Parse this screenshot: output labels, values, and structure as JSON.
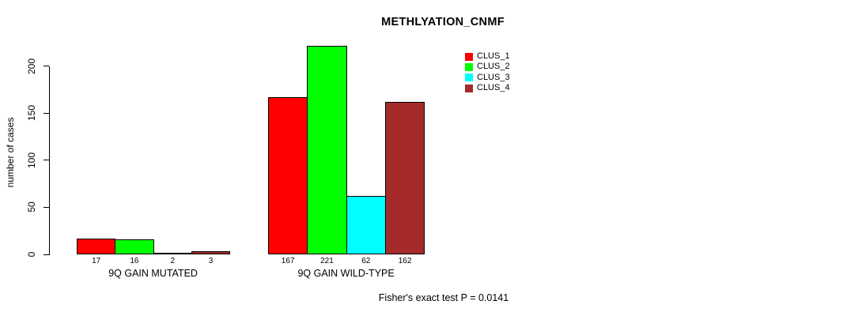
{
  "chart_data": {
    "type": "bar",
    "title": "METHLYATION_CNMF",
    "ylabel": "number of cases",
    "xlabel": "",
    "categories": [
      "9Q GAIN MUTATED",
      "9Q GAIN WILD-TYPE"
    ],
    "series": [
      {
        "name": "CLUS_1",
        "color": "#ff0000",
        "values": [
          17,
          167
        ]
      },
      {
        "name": "CLUS_2",
        "color": "#00ff00",
        "values": [
          16,
          221
        ]
      },
      {
        "name": "CLUS_3",
        "color": "#00ffff",
        "values": [
          2,
          62
        ]
      },
      {
        "name": "CLUS_4",
        "color": "#a52a2a",
        "values": [
          3,
          162
        ]
      }
    ],
    "yticks": [
      0,
      50,
      100,
      150,
      200
    ],
    "ylim": [
      0,
      200
    ],
    "grid": false,
    "legend_position": "top-right",
    "bar_value_labels_shown": true,
    "annotation": "Fisher's exact test P = 0.0141"
  }
}
